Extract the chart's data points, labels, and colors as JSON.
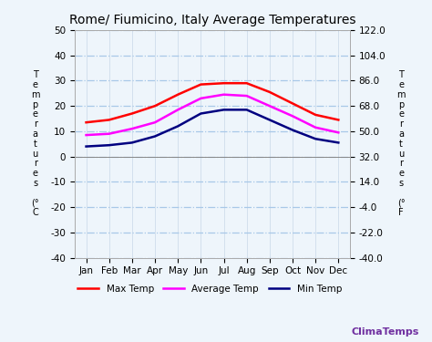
{
  "title": "Rome/ Fiumicino, Italy Average Temperatures",
  "months": [
    "Jan",
    "Feb",
    "Mar",
    "Apr",
    "May",
    "Jun",
    "Jul",
    "Aug",
    "Sep",
    "Oct",
    "Nov",
    "Dec"
  ],
  "max_temp": [
    13.5,
    14.5,
    17.0,
    20.0,
    24.5,
    28.5,
    29.0,
    29.0,
    25.5,
    21.0,
    16.5,
    14.5
  ],
  "avg_temp": [
    8.5,
    9.0,
    11.0,
    13.5,
    18.5,
    23.0,
    24.5,
    24.0,
    20.0,
    16.0,
    11.5,
    9.5
  ],
  "min_temp": [
    4.0,
    4.5,
    5.5,
    8.0,
    12.0,
    17.0,
    18.5,
    18.5,
    14.5,
    10.5,
    7.0,
    5.5
  ],
  "max_color": "#ff0000",
  "avg_color": "#ff00ff",
  "min_color": "#000080",
  "ylim_left": [
    -40,
    50
  ],
  "ylim_right": [
    -40.0,
    122.0
  ],
  "yticks_left": [
    -40,
    -30,
    -20,
    -10,
    0,
    10,
    20,
    30,
    40,
    50
  ],
  "yticks_right": [
    -40.0,
    -22.0,
    -4.0,
    14.0,
    32.0,
    50.0,
    68.0,
    86.0,
    104.0,
    122.0
  ],
  "grid_color": "#a8c8e8",
  "background_color": "#eef5fb",
  "title_fontsize": 10,
  "tick_fontsize": 7.5,
  "watermark": "ClimaTemps",
  "watermark_color": "#7030a0",
  "ylabel_left": "T\ne\nm\np\ne\nr\na\nt\nu\nr\ne\ns\n\n(°\nC",
  "ylabel_right": "T\ne\nm\np\ne\nr\na\nt\nu\nr\ne\ns\n\n(°\nF"
}
